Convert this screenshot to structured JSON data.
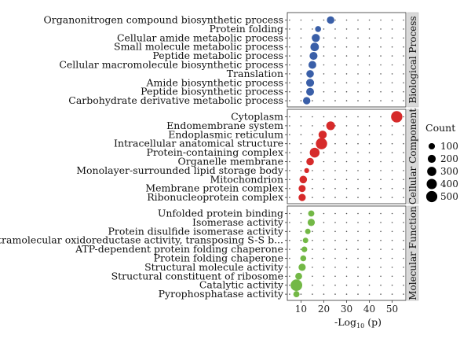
{
  "chart_data": {
    "type": "scatter",
    "xlabel": "-Log10 (p)",
    "xlabel_parts": {
      "main": "-Log",
      "sub": "10",
      "tail": " (p)"
    },
    "xlim": [
      4,
      56
    ],
    "xticks": [
      10,
      20,
      30,
      40,
      50
    ],
    "grid": "dotted",
    "size_legend": {
      "title": "Count",
      "values": [
        100,
        200,
        300,
        400,
        500
      ]
    },
    "panels": [
      {
        "name": "Biological Process",
        "color": "#3a5fa8",
        "terms": [
          {
            "label": "Organonitrogen compound biosynthetic process",
            "x": 23.0,
            "count": 170
          },
          {
            "label": "Protein folding",
            "x": 17.5,
            "count": 80
          },
          {
            "label": "Cellular amide metabolic process",
            "x": 16.5,
            "count": 210
          },
          {
            "label": "Small molecule metabolic process",
            "x": 16.0,
            "count": 240
          },
          {
            "label": "Peptide metabolic process",
            "x": 15.5,
            "count": 200
          },
          {
            "label": "Cellular macromolecule biosynthetic process",
            "x": 15.0,
            "count": 190
          },
          {
            "label": "Translation",
            "x": 14.0,
            "count": 170
          },
          {
            "label": "Amide biosynthetic process",
            "x": 14.0,
            "count": 200
          },
          {
            "label": "Peptide biosynthetic process",
            "x": 14.0,
            "count": 190
          },
          {
            "label": "Carbohydrate derivative metabolic process",
            "x": 12.5,
            "count": 160
          }
        ]
      },
      {
        "name": "Cellular Component",
        "color": "#d62a2a",
        "terms": [
          {
            "label": "Cytoplasm",
            "x": 52.0,
            "count": 520
          },
          {
            "label": "Endomembrane system",
            "x": 23.0,
            "count": 260
          },
          {
            "label": "Endoplasmic reticulum",
            "x": 19.5,
            "count": 220
          },
          {
            "label": "Intracellular anatomical structure",
            "x": 19.0,
            "count": 520
          },
          {
            "label": "Protein-containing complex",
            "x": 16.0,
            "count": 360
          },
          {
            "label": "Organelle membrane",
            "x": 14.0,
            "count": 170
          },
          {
            "label": "Monolayer-surrounded lipid storage body",
            "x": 12.5,
            "count": 40
          },
          {
            "label": "Mitochondrion",
            "x": 11.0,
            "count": 170
          },
          {
            "label": "Membrane protein complex",
            "x": 10.5,
            "count": 140
          },
          {
            "label": "Ribonucleoprotein complex",
            "x": 10.5,
            "count": 150
          }
        ]
      },
      {
        "name": "Molecular Function",
        "color": "#73b846",
        "terms": [
          {
            "label": "Unfolded protein binding",
            "x": 14.5,
            "count": 90
          },
          {
            "label": "Isomerase activity",
            "x": 14.5,
            "count": 150
          },
          {
            "label": "Protein disulfide isomerase activity",
            "x": 13.0,
            "count": 60
          },
          {
            "label": "Intramolecular oxidoreductase activity, transposing S-S b...",
            "x": 12.0,
            "count": 60
          },
          {
            "label": "ATP-dependent protein folding chaperone",
            "x": 11.5,
            "count": 70
          },
          {
            "label": "Protein folding chaperone",
            "x": 11.0,
            "count": 80
          },
          {
            "label": "Structural molecule activity",
            "x": 10.5,
            "count": 150
          },
          {
            "label": "Structural constituent of ribosome",
            "x": 9.0,
            "count": 130
          },
          {
            "label": "Catalytic activity",
            "x": 8.0,
            "count": 560
          },
          {
            "label": "Pyrophosphatase activity",
            "x": 8.0,
            "count": 90
          }
        ]
      }
    ]
  }
}
